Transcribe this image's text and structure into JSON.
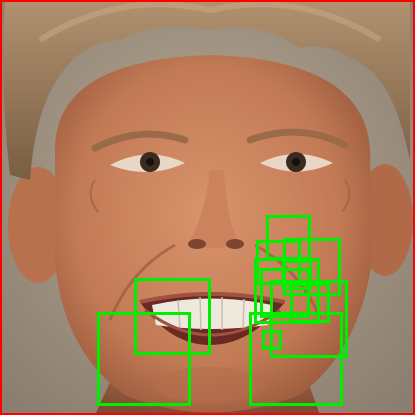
{
  "image": {
    "subject": "face-photo",
    "frame_color": "#ff0000",
    "box_color": "#00ee00"
  },
  "detections": {
    "count": 12
  }
}
